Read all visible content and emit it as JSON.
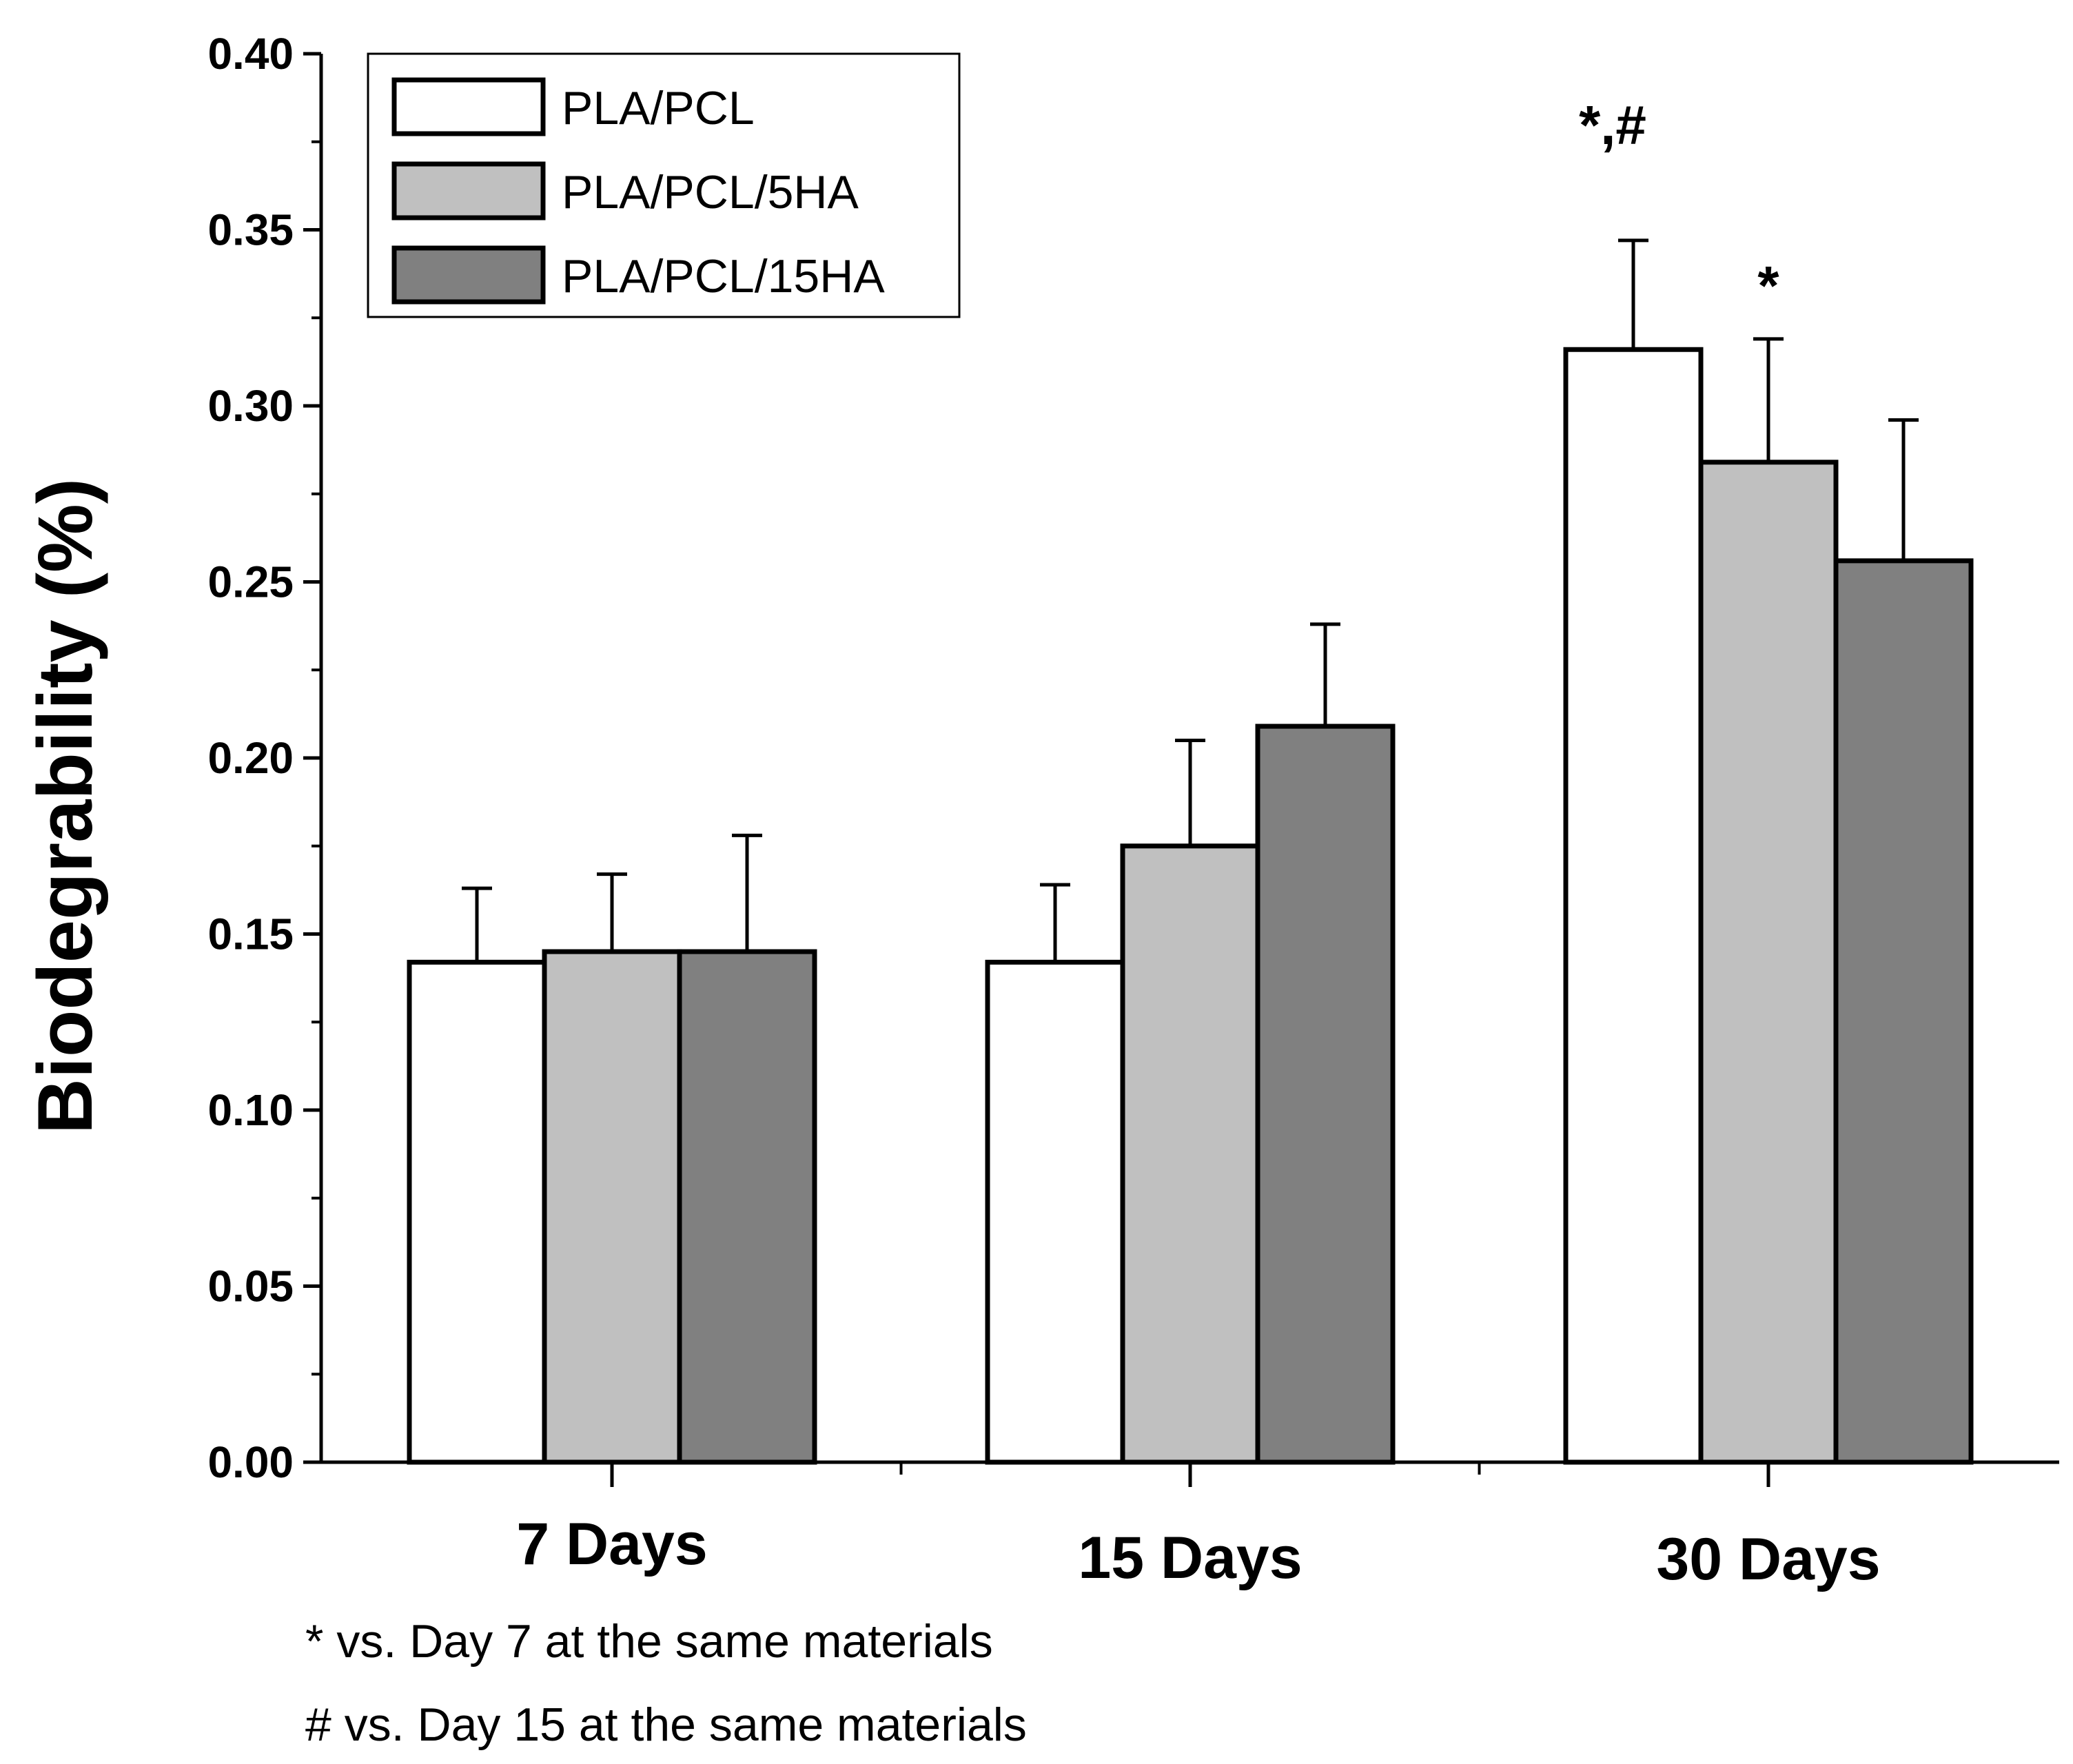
{
  "chart_data": {
    "type": "bar",
    "title": "",
    "xlabel": "",
    "ylabel": "Biodegrability (%)",
    "ylim": [
      0,
      0.4
    ],
    "yticks": [
      "0.00",
      "0.05",
      "0.10",
      "0.15",
      "0.20",
      "0.25",
      "0.30",
      "0.35",
      "0.40"
    ],
    "categories": [
      "7 Days",
      "15 Days",
      "30 Days"
    ],
    "series": [
      {
        "name": "PLA/PCL",
        "color": "#ffffff",
        "values": [
          0.142,
          0.142,
          0.316
        ],
        "errors": [
          0.021,
          0.022,
          0.031
        ]
      },
      {
        "name": "PLA/PCL/5HA",
        "color": "#c0c0c0",
        "values": [
          0.145,
          0.175,
          0.284
        ],
        "errors": [
          0.022,
          0.03,
          0.035
        ]
      },
      {
        "name": "PLA/PCL/15HA",
        "color": "#808080",
        "values": [
          0.145,
          0.209,
          0.256
        ],
        "errors": [
          0.033,
          0.029,
          0.04
        ]
      }
    ],
    "annotations": [
      {
        "category": "30 Days",
        "series": "PLA/PCL",
        "text": "*,#"
      },
      {
        "category": "30 Days",
        "series": "PLA/PCL/5HA",
        "text": "*"
      }
    ],
    "legend_position": "top-left",
    "footnotes": [
      "* vs. Day 7 at the same materials",
      "# vs. Day 15 at the same materials"
    ]
  }
}
